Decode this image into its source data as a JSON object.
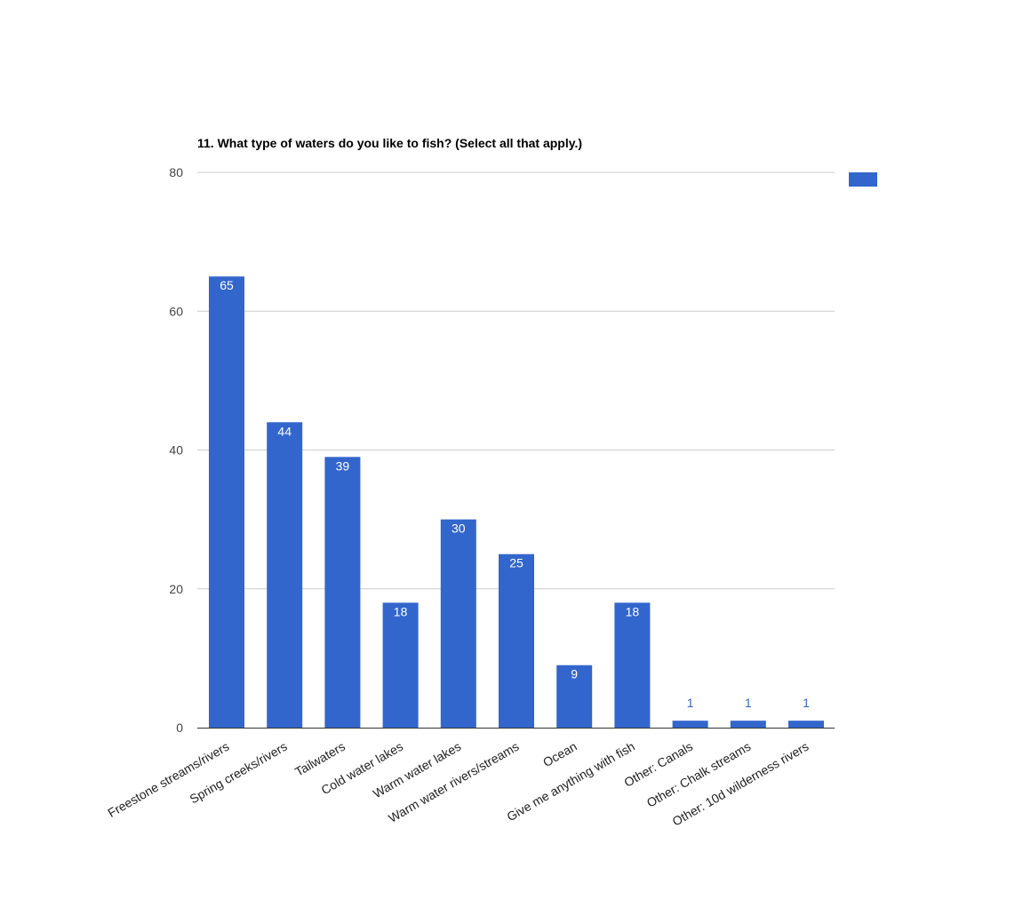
{
  "chart_data": {
    "type": "bar",
    "title": "11. What type of waters do you like to fish? (Select all that apply.)",
    "categories": [
      "Freestone streams/rivers",
      "Spring creeks/rivers",
      "Tailwaters",
      "Cold water lakes",
      "Warm water lakes",
      "Warm water rivers/streams",
      "Ocean",
      "Give me anything with fish",
      "Other: Canals",
      "Other: Chalk streams",
      "Other: 10d wilderness rivers"
    ],
    "series": [
      {
        "values": [
          65,
          44,
          39,
          18,
          30,
          25,
          9,
          18,
          1,
          1,
          1
        ]
      }
    ],
    "y_ticks": [
      "0",
      "20",
      "40",
      "60",
      "80"
    ],
    "ylim": [
      0,
      80
    ],
    "xlabel": "",
    "ylabel": "",
    "grid": true,
    "legend": "right",
    "colors": {
      "bar": "#3366cc",
      "inside_label": "#ffffff",
      "outside_label": "#3366cc",
      "gridline": "#cccccc",
      "baseline": "#333333"
    }
  }
}
